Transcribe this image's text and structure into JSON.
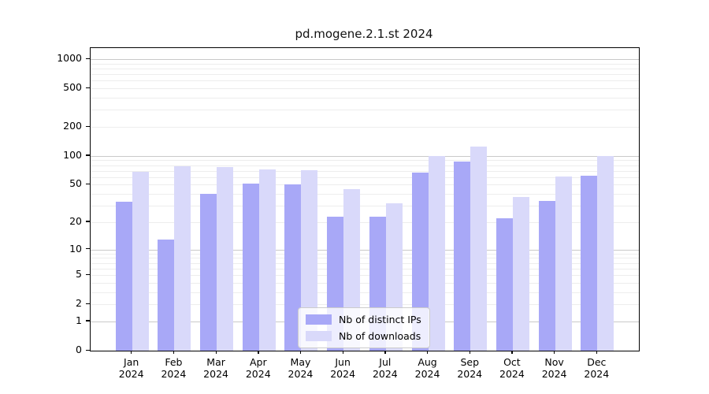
{
  "figure": {
    "title": "pd.mogene.2.1.st 2024"
  },
  "chart_data": {
    "type": "bar",
    "title": "pd.mogene.2.1.st 2024",
    "scale": "log1p",
    "grid": true,
    "legend_position": "lower center",
    "categories": [
      "Jan",
      "Feb",
      "Mar",
      "Apr",
      "May",
      "Jun",
      "Jul",
      "Aug",
      "Sep",
      "Oct",
      "Nov",
      "Dec"
    ],
    "x_year": "2024",
    "yticks": [
      0,
      1,
      2,
      5,
      10,
      20,
      50,
      100,
      200,
      500,
      1000
    ],
    "ylim": [
      0,
      1300
    ],
    "series": [
      {
        "name": "Nb of distinct IPs",
        "color": "#a8a8f7",
        "values": [
          33,
          13,
          40,
          51,
          50,
          23,
          23,
          67,
          87,
          22,
          34,
          62
        ]
      },
      {
        "name": "Nb of downloads",
        "color": "#d9d9fa",
        "values": [
          68,
          78,
          77,
          73,
          71,
          45,
          32,
          100,
          125,
          37,
          61,
          100
        ]
      }
    ]
  }
}
